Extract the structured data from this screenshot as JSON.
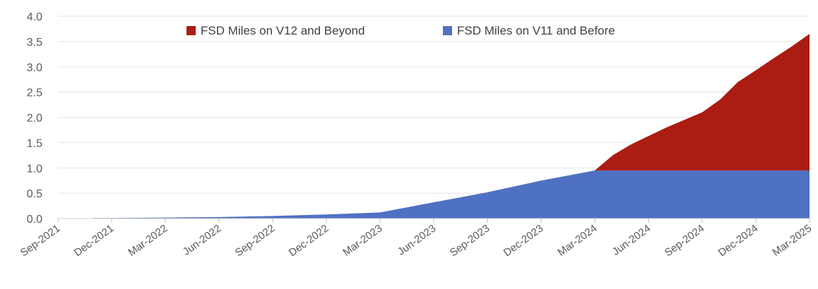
{
  "chart_data": {
    "type": "area",
    "stacked": true,
    "title": "",
    "xlabel": "",
    "ylabel": "",
    "ylim": [
      0,
      4.0
    ],
    "yticks": [
      "0.0",
      "0.5",
      "1.0",
      "1.5",
      "2.0",
      "2.5",
      "3.0",
      "3.5",
      "4.0"
    ],
    "xtick_labels": [
      "Sep-2021",
      "Dec-2021",
      "Mar-2022",
      "Jun-2022",
      "Sep-2022",
      "Dec-2022",
      "Mar-2023",
      "Jun-2023",
      "Sep-2023",
      "Dec-2023",
      "Mar-2024",
      "Jun-2024",
      "Sep-2024",
      "Dec-2024",
      "Mar-2025"
    ],
    "grid": true,
    "legend_position": "top-center",
    "x": [
      "Nov-2021",
      "Dec-2021",
      "Mar-2022",
      "Jun-2022",
      "Sep-2022",
      "Dec-2022",
      "Mar-2023",
      "Jun-2023",
      "Sep-2023",
      "Dec-2023",
      "Mar-2024",
      "Apr-2024",
      "May-2024",
      "Jun-2024",
      "Jul-2024",
      "Aug-2024",
      "Sep-2024",
      "Oct-2024",
      "Nov-2024",
      "Dec-2024",
      "Jan-2025",
      "Feb-2025",
      "Mar-2025"
    ],
    "series": [
      {
        "name": "FSD Miles on V11 and Before",
        "color": "#4f71c3",
        "values": [
          0.01,
          0.01,
          0.02,
          0.03,
          0.05,
          0.08,
          0.12,
          0.32,
          0.52,
          0.75,
          0.95,
          0.95,
          0.95,
          0.95,
          0.95,
          0.95,
          0.95,
          0.95,
          0.95,
          0.95,
          0.95,
          0.95,
          0.95
        ]
      },
      {
        "name": "FSD Miles on V12 and Beyond",
        "color": "#ab1c12",
        "values": [
          0,
          0,
          0,
          0,
          0,
          0,
          0,
          0,
          0,
          0,
          0,
          0.3,
          0.51,
          0.68,
          0.85,
          1.0,
          1.15,
          1.4,
          1.75,
          1.98,
          2.22,
          2.45,
          2.7
        ]
      }
    ]
  }
}
